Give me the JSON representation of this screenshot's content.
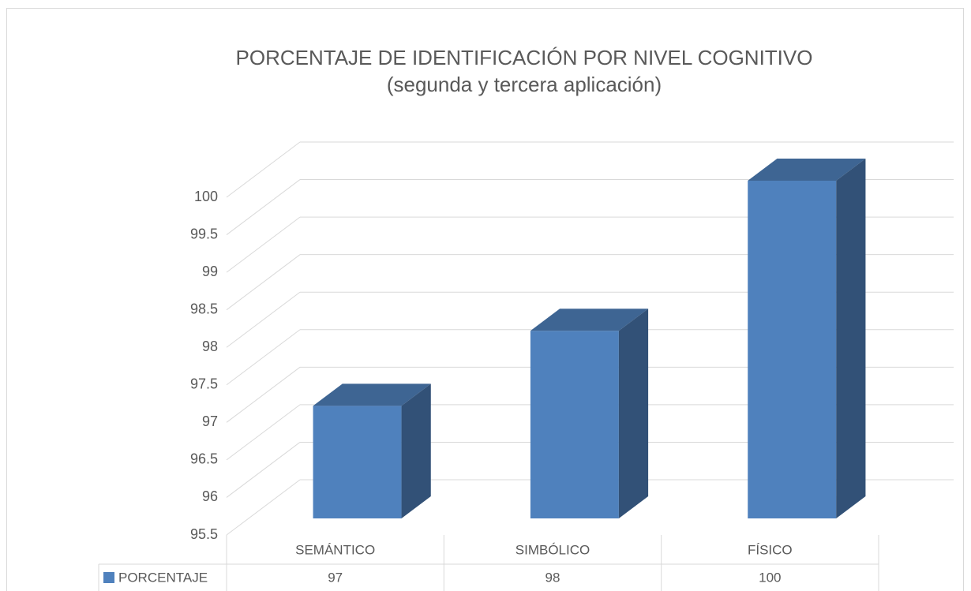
{
  "chart_data": {
    "type": "bar3d",
    "title": "PORCENTAJE DE IDENTIFICACIÓN POR NIVEL COGNITIVO",
    "subtitle": "(segunda y tercera aplicación)",
    "categories": [
      "SEMÁNTICO",
      "SIMBÓLICO",
      "FÍSICO"
    ],
    "series": [
      {
        "name": "PORCENTAJE",
        "color": "#4f81bd",
        "values": [
          97,
          98,
          100
        ]
      }
    ],
    "ylim": [
      95.5,
      100
    ],
    "yticks": [
      95.5,
      96,
      96.5,
      97,
      97.5,
      98,
      98.5,
      99,
      99.5,
      100
    ],
    "grid": true
  }
}
